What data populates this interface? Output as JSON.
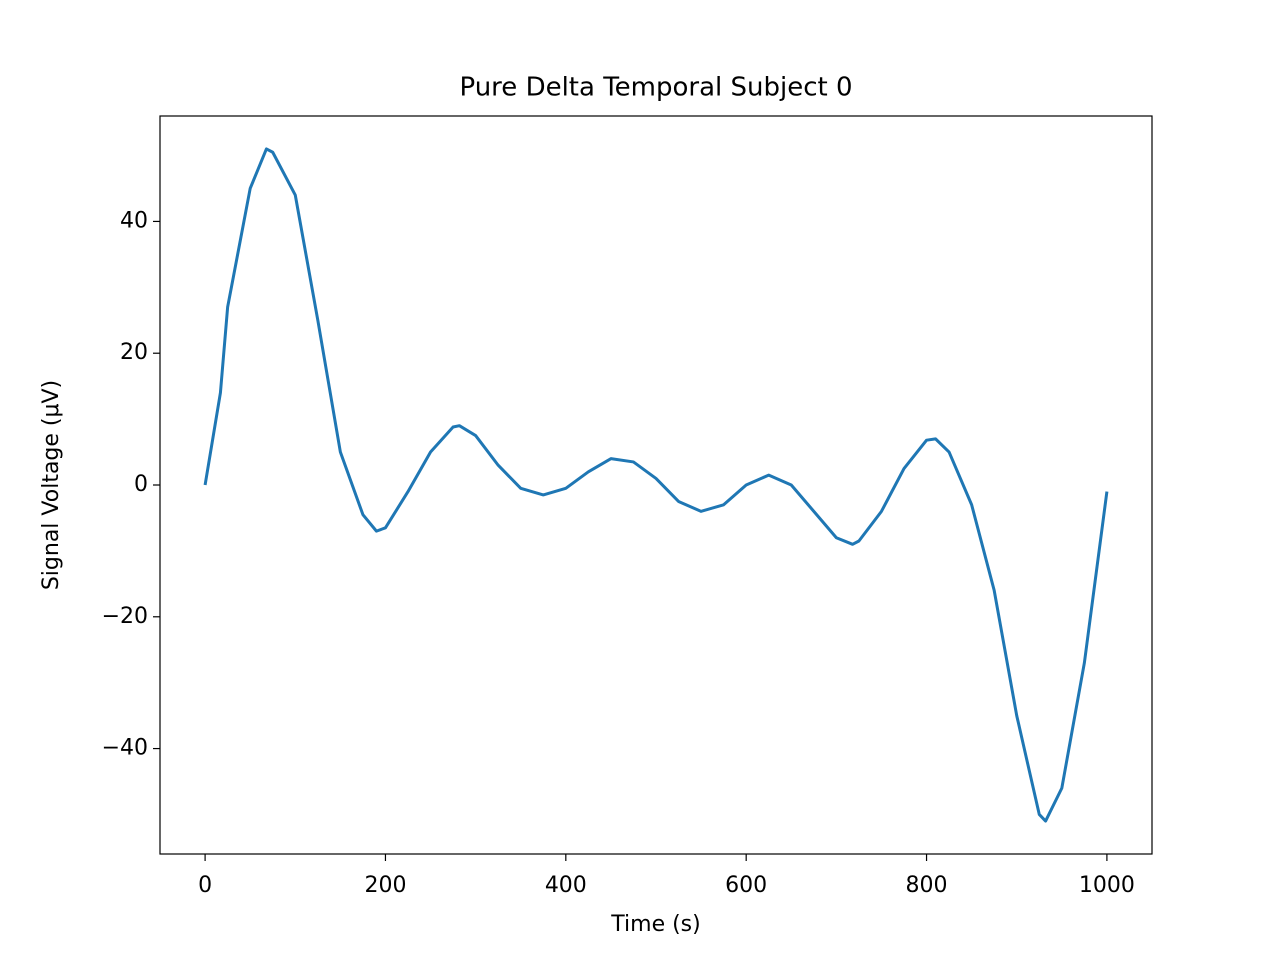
{
  "chart_data": {
    "type": "line",
    "title": "Pure Delta Temporal Subject 0",
    "x_label": "Time (s)",
    "y_label": "Signal Voltage (μV)",
    "x": [
      0,
      17,
      25,
      50,
      68,
      75,
      100,
      125,
      150,
      175,
      190,
      200,
      225,
      250,
      275,
      282,
      300,
      325,
      350,
      375,
      400,
      425,
      450,
      475,
      500,
      525,
      550,
      575,
      600,
      625,
      650,
      675,
      700,
      718,
      725,
      750,
      775,
      800,
      810,
      825,
      850,
      875,
      900,
      925,
      932,
      950,
      975,
      1000
    ],
    "series": [
      {
        "color": "#1f77b4",
        "values": [
          0,
          14,
          27,
          45,
          51,
          50.5,
          44,
          25,
          5,
          -4.5,
          -7,
          -6.5,
          -1,
          5,
          8.8,
          9,
          7.5,
          3,
          -0.5,
          -1.5,
          -0.5,
          2,
          4,
          3.5,
          1,
          -2.5,
          -4,
          -3,
          0,
          1.5,
          0,
          -4,
          -8,
          -9,
          -8.5,
          -4,
          2.5,
          6.8,
          7,
          5,
          -3,
          -16,
          -35,
          -50,
          -51,
          -46,
          -27,
          -1
        ]
      }
    ],
    "xlim": [
      -50,
      1050
    ],
    "ylim": [
      -56,
      56
    ],
    "xticks": [
      0,
      200,
      400,
      600,
      800,
      1000
    ],
    "yticks": [
      {
        "value": -40,
        "label": "−40"
      },
      {
        "value": -20,
        "label": "−20"
      },
      0,
      20,
      40
    ]
  }
}
